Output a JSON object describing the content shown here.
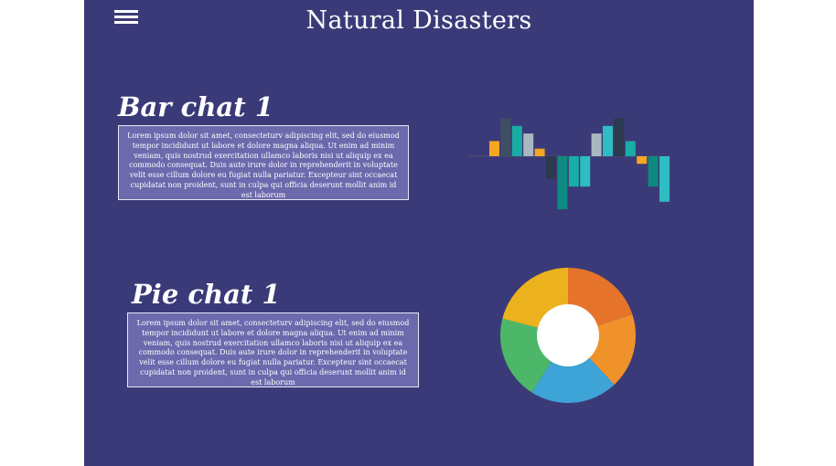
{
  "header": {
    "title": "Natural Disasters",
    "menu_icon": "hamburger-menu-icon"
  },
  "sections": [
    {
      "heading": "Bar chat 1",
      "body": "Lorem ipsum dolor sit amet, consecteturv adipiscing elit, sed do eiusmod tempor incididunt ut labore et dolore magna aliqua. Ut enim ad minim veniam, quis nostrud exercitation ullamco laboris nisi ut aliquip ex ea commodo consequat. Duis aute irure dolor in reprehenderit in voluptate velit esse cillum dolore eu fugiat nulla pariatur. Excepteur sint occaecat cupidatat non proident, sunt in culpa qui officia deserunt mollit anim id est laborum"
    },
    {
      "heading": "Pie chat 1",
      "body": "Lorem ipsum dolor sit amet, consecteturv adipiscing elit, sed do eiusmod tempor incididunt ut labore et dolore magna aliqua. Ut enim ad minim veniam, quis nostrud exercitation ullamco laboris nisi ut aliquip ex ea commodo consequat. Duis aute irure dolor in reprehenderit in voluptate velit esse cillum dolore eu fugiat nulla pariatur. Excepteur sint occaecat cupidatat non proident, sunt in culpa qui officia deserunt mollit anim id est laborum"
    }
  ],
  "colors": {
    "background": "#3b3a78",
    "text_box": "#6c69ad",
    "orange": "#f5a623",
    "navy": "#2b3a4e",
    "slate": "#3e4f63",
    "teal": "#1aada5",
    "dark_teal": "#0e8a7e",
    "light_teal": "#2fbcc2",
    "grey": "#a9b7c0"
  },
  "chart_data": [
    {
      "type": "bar",
      "values": [
        2,
        5,
        4,
        3,
        1,
        -3,
        -7,
        -4,
        -4,
        3,
        4,
        5,
        2,
        -1,
        -4,
        -6,
        -5,
        -7,
        -3
      ],
      "colors": [
        "#f5a623",
        "#3e4f63",
        "#1aada5",
        "#a9b7c0",
        "#f5a623",
        "#2b3a4e",
        "#0e8a7e",
        "#1aada5",
        "#2fbcc2",
        "#a9b7c0",
        "#2fbcc2",
        "#2b3a4e",
        "#1aada5",
        "#f5a623",
        "#0e8a7e",
        "#2fbcc2",
        "#2b3a4e",
        "#2b3a4e",
        "#f5a623"
      ],
      "grid": false
    },
    {
      "type": "pie",
      "donut": true,
      "slices": [
        {
          "value": 20,
          "color": "#e5742a"
        },
        {
          "value": 18,
          "color": "#f0922a"
        },
        {
          "value": 21,
          "color": "#3ea3d6"
        },
        {
          "value": 20,
          "color": "#4cb769"
        },
        {
          "value": 21,
          "color": "#ecb21e"
        }
      ]
    }
  ]
}
